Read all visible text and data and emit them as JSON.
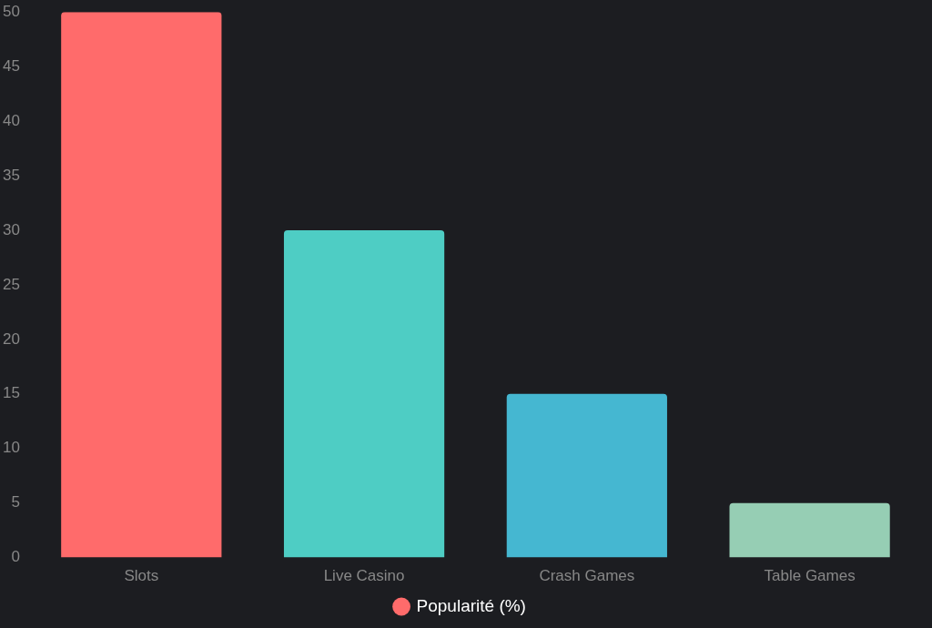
{
  "chart_data": {
    "type": "bar",
    "categories": [
      "Slots",
      "Live Casino",
      "Crash Games",
      "Table Games"
    ],
    "series": [
      {
        "name": "Popularité (%)",
        "colors": [
          "#ff6b6b",
          "#4ecdc4",
          "#45b7d1",
          "#96ceb4"
        ],
        "values": [
          50,
          30,
          15,
          5
        ]
      }
    ],
    "ylim": [
      0,
      50
    ],
    "yticks": [
      0,
      5,
      10,
      15,
      20,
      25,
      30,
      35,
      40,
      45,
      50
    ],
    "grid": false,
    "legend": "bottom"
  }
}
